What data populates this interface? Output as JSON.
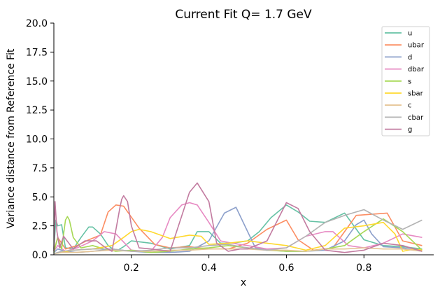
{
  "chart_data": {
    "type": "line",
    "title": "Current Fit Q= 1.7 GeV",
    "xlabel": "x",
    "ylabel": "Variance distance from Reference Fit",
    "xlim": [
      0.0,
      0.98
    ],
    "ylim": [
      0,
      20
    ],
    "xticks": [
      0.2,
      0.4,
      0.6,
      0.8
    ],
    "xtick_labels": [
      "0.2",
      "0.4",
      "0.6",
      "0.8"
    ],
    "yticks": [
      0,
      2.5,
      5,
      7.5,
      10,
      12.5,
      15,
      17.5,
      20
    ],
    "ytick_labels": [
      "0.0",
      "2.5",
      "5.0",
      "7.5",
      "10.0",
      "12.5",
      "15.0",
      "17.5",
      "20.0"
    ],
    "grid": false,
    "legend_position": "top-right",
    "series": [
      {
        "name": "u",
        "color": "#66c2a5",
        "x": [
          0.0,
          0.005,
          0.01,
          0.02,
          0.03,
          0.05,
          0.07,
          0.09,
          0.1,
          0.12,
          0.14,
          0.16,
          0.18,
          0.2,
          0.25,
          0.3,
          0.35,
          0.37,
          0.4,
          0.43,
          0.46,
          0.5,
          0.53,
          0.56,
          0.6,
          0.63,
          0.66,
          0.7,
          0.75,
          0.8,
          0.85,
          0.9,
          0.95
        ],
        "y": [
          0.5,
          3.0,
          2.5,
          2.6,
          0.6,
          0.5,
          1.5,
          2.4,
          2.4,
          1.8,
          0.8,
          0.3,
          0.7,
          1.2,
          1.0,
          0.5,
          0.8,
          2.0,
          2.0,
          1.0,
          1.0,
          1.2,
          2.0,
          3.2,
          4.3,
          3.7,
          2.9,
          2.8,
          3.6,
          1.3,
          0.8,
          0.7,
          0.5
        ]
      },
      {
        "name": "ubar",
        "color": "#fc8d62",
        "x": [
          0.0,
          0.01,
          0.03,
          0.06,
          0.09,
          0.12,
          0.14,
          0.16,
          0.18,
          0.22,
          0.26,
          0.3,
          0.35,
          0.4,
          0.45,
          0.5,
          0.55,
          0.6,
          0.63,
          0.67,
          0.72,
          0.78,
          0.82,
          0.86,
          0.9,
          0.95
        ],
        "y": [
          0.3,
          1.5,
          0.5,
          0.8,
          1.3,
          1.7,
          3.7,
          4.3,
          4.2,
          2.3,
          0.9,
          0.6,
          0.7,
          0.5,
          0.5,
          1.0,
          2.2,
          3.0,
          1.3,
          0.4,
          0.6,
          3.4,
          3.5,
          3.6,
          1.2,
          0.8
        ]
      },
      {
        "name": "d",
        "color": "#8da0cb",
        "x": [
          0.0,
          0.01,
          0.03,
          0.06,
          0.1,
          0.15,
          0.2,
          0.25,
          0.3,
          0.35,
          0.4,
          0.44,
          0.47,
          0.5,
          0.52,
          0.56,
          0.6,
          0.65,
          0.7,
          0.75,
          0.78,
          0.8,
          0.82,
          0.85,
          0.9,
          0.95
        ],
        "y": [
          0.2,
          0.5,
          0.3,
          0.2,
          0.3,
          0.5,
          0.3,
          0.2,
          0.2,
          0.3,
          1.2,
          3.6,
          4.1,
          2.0,
          0.6,
          0.4,
          0.3,
          0.3,
          0.4,
          1.2,
          2.6,
          3.0,
          1.8,
          0.7,
          0.6,
          0.3
        ]
      },
      {
        "name": "dbar",
        "color": "#e78ac3",
        "x": [
          0.0,
          0.01,
          0.03,
          0.06,
          0.1,
          0.13,
          0.16,
          0.2,
          0.25,
          0.28,
          0.3,
          0.33,
          0.35,
          0.37,
          0.4,
          0.43,
          0.46,
          0.5,
          0.55,
          0.6,
          0.65,
          0.7,
          0.72,
          0.76,
          0.8,
          0.85,
          0.9,
          0.95
        ],
        "y": [
          0.3,
          0.8,
          0.3,
          0.6,
          1.2,
          2.0,
          1.8,
          0.4,
          0.3,
          1.5,
          3.2,
          4.3,
          4.5,
          4.3,
          2.8,
          1.2,
          1.0,
          0.8,
          0.5,
          0.6,
          1.6,
          2.0,
          2.0,
          0.8,
          0.6,
          1.0,
          1.8,
          1.5
        ]
      },
      {
        "name": "s",
        "color": "#a6d854",
        "x": [
          0.0,
          0.01,
          0.02,
          0.03,
          0.035,
          0.04,
          0.05,
          0.07,
          0.1,
          0.13,
          0.16,
          0.2,
          0.25,
          0.3,
          0.35,
          0.4,
          0.45,
          0.5,
          0.55,
          0.6,
          0.65,
          0.7,
          0.75,
          0.8,
          0.85,
          0.9,
          0.95
        ],
        "y": [
          0.2,
          1.5,
          0.5,
          3.0,
          3.3,
          3.0,
          1.5,
          0.6,
          0.8,
          0.5,
          0.3,
          0.4,
          0.2,
          0.3,
          0.5,
          0.6,
          0.8,
          0.6,
          0.4,
          0.3,
          0.3,
          0.5,
          0.8,
          2.0,
          3.1,
          2.0,
          0.4
        ]
      },
      {
        "name": "sbar",
        "color": "#ffd92f",
        "x": [
          0.0,
          0.02,
          0.05,
          0.1,
          0.15,
          0.18,
          0.2,
          0.22,
          0.25,
          0.3,
          0.35,
          0.38,
          0.4,
          0.45,
          0.5,
          0.55,
          0.6,
          0.65,
          0.7,
          0.75,
          0.8,
          0.85,
          0.88,
          0.9,
          0.93,
          0.95
        ],
        "y": [
          0.1,
          0.2,
          0.4,
          0.5,
          0.8,
          1.5,
          2.0,
          2.2,
          2.0,
          1.4,
          1.7,
          1.6,
          0.9,
          1.0,
          1.2,
          1.0,
          0.8,
          0.4,
          0.8,
          2.3,
          2.5,
          2.8,
          1.8,
          0.3,
          0.5,
          0.4
        ]
      },
      {
        "name": "c",
        "color": "#e5c494",
        "x": [
          0.0,
          0.02,
          0.05,
          0.1,
          0.15,
          0.2,
          0.25,
          0.3,
          0.35,
          0.4,
          0.45,
          0.5,
          0.55,
          0.6,
          0.65,
          0.7,
          0.75,
          0.8,
          0.85,
          0.9,
          0.95
        ],
        "y": [
          0.1,
          0.2,
          0.2,
          0.3,
          0.4,
          0.3,
          0.3,
          0.4,
          0.4,
          0.5,
          0.5,
          0.5,
          0.4,
          0.4,
          0.3,
          0.5,
          0.5,
          0.6,
          0.5,
          0.5,
          0.3
        ]
      },
      {
        "name": "cbar",
        "color": "#b3b3b3",
        "x": [
          0.0,
          0.02,
          0.05,
          0.1,
          0.15,
          0.2,
          0.25,
          0.3,
          0.35,
          0.4,
          0.45,
          0.5,
          0.55,
          0.6,
          0.65,
          0.7,
          0.75,
          0.8,
          0.85,
          0.9,
          0.95
        ],
        "y": [
          0.1,
          0.3,
          0.4,
          0.5,
          0.5,
          0.3,
          0.4,
          0.6,
          0.6,
          0.8,
          0.9,
          0.6,
          0.4,
          0.6,
          1.6,
          2.8,
          3.4,
          3.9,
          3.0,
          2.2,
          3.0
        ]
      },
      {
        "name": "g",
        "color": "#c27ba0",
        "x": [
          0.0,
          0.003,
          0.008,
          0.015,
          0.025,
          0.05,
          0.08,
          0.11,
          0.13,
          0.15,
          0.17,
          0.175,
          0.18,
          0.19,
          0.2,
          0.22,
          0.25,
          0.3,
          0.35,
          0.37,
          0.4,
          0.42,
          0.45,
          0.48,
          0.5,
          0.55,
          0.6,
          0.63,
          0.66,
          0.7,
          0.75,
          0.8,
          0.85,
          0.9,
          0.95
        ],
        "y": [
          0.3,
          4.6,
          2.0,
          0.6,
          1.6,
          0.5,
          1.2,
          1.2,
          0.7,
          0.3,
          4.0,
          4.8,
          5.1,
          4.6,
          2.5,
          0.6,
          0.5,
          0.3,
          5.4,
          6.2,
          4.6,
          1.0,
          0.3,
          0.5,
          0.5,
          1.2,
          4.5,
          4.0,
          2.0,
          0.4,
          0.2,
          0.4,
          1.0,
          0.8,
          0.3
        ]
      }
    ]
  }
}
